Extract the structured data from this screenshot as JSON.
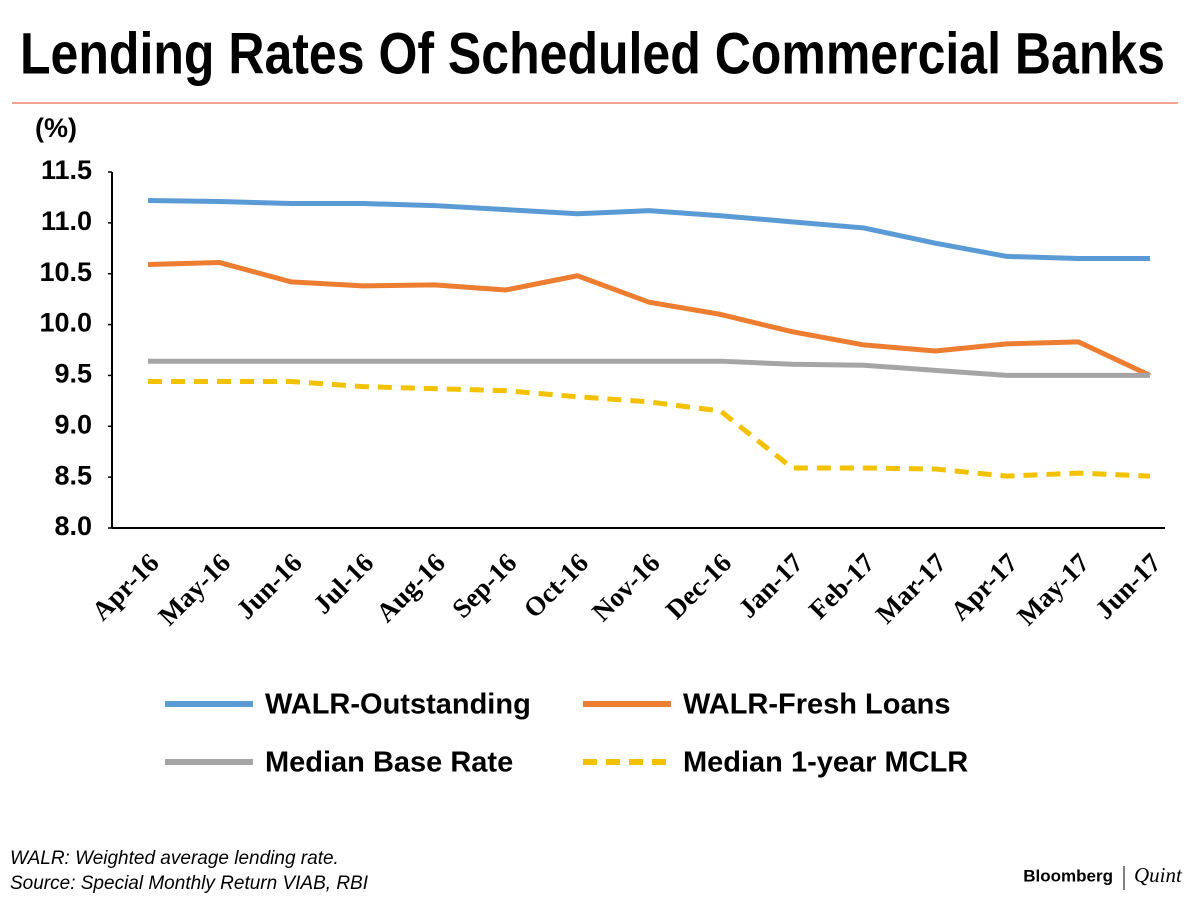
{
  "chart_data": {
    "type": "line",
    "title": "Lending Rates Of Scheduled Commercial Banks",
    "y_label": "(%)",
    "categories": [
      "Apr-16",
      "May-16",
      "Jun-16",
      "Jul-16",
      "Aug-16",
      "Sep-16",
      "Oct-16",
      "Nov-16",
      "Dec-16",
      "Jan-17",
      "Feb-17",
      "Mar-17",
      "Apr-17",
      "May-17",
      "Jun-17"
    ],
    "series": [
      {
        "name": "WALR-Outstanding",
        "color": "#5b9bd5",
        "dash": false,
        "values": [
          11.22,
          11.21,
          11.19,
          11.19,
          11.17,
          11.13,
          11.09,
          11.12,
          11.07,
          11.01,
          10.95,
          10.8,
          10.67,
          10.65,
          10.65
        ]
      },
      {
        "name": "WALR-Fresh Loans",
        "color": "#ed7d31",
        "dash": false,
        "values": [
          10.59,
          10.61,
          10.42,
          10.38,
          10.39,
          10.34,
          10.48,
          10.22,
          10.1,
          9.93,
          9.8,
          9.74,
          9.81,
          9.83,
          9.5
        ]
      },
      {
        "name": "Median Base Rate",
        "color": "#a5a5a5",
        "dash": false,
        "values": [
          9.64,
          9.64,
          9.64,
          9.64,
          9.64,
          9.64,
          9.64,
          9.64,
          9.64,
          9.61,
          9.6,
          9.55,
          9.5,
          9.5,
          9.5
        ]
      },
      {
        "name": "Median 1-year MCLR",
        "color": "#f2c100",
        "dash": true,
        "values": [
          9.44,
          9.44,
          9.44,
          9.39,
          9.37,
          9.35,
          9.29,
          9.24,
          9.15,
          8.59,
          8.59,
          8.58,
          8.51,
          8.54,
          8.51
        ]
      }
    ],
    "ylim": [
      8.0,
      11.5
    ],
    "yticks": [
      {
        "value": 8.0,
        "label": "8.0"
      },
      8.5,
      {
        "value": 9.0,
        "label": "9.0"
      },
      9.5,
      {
        "value": 10.0,
        "label": "10.0"
      },
      10.5,
      {
        "value": 11.0,
        "label": "11.0"
      },
      11.5
    ],
    "grid": false,
    "notes": [
      "WALR: Weighted average lending rate.",
      "Source: Special Monthly Return VIAB, RBI"
    ],
    "brand": [
      "Bloomberg",
      "Quint"
    ]
  }
}
